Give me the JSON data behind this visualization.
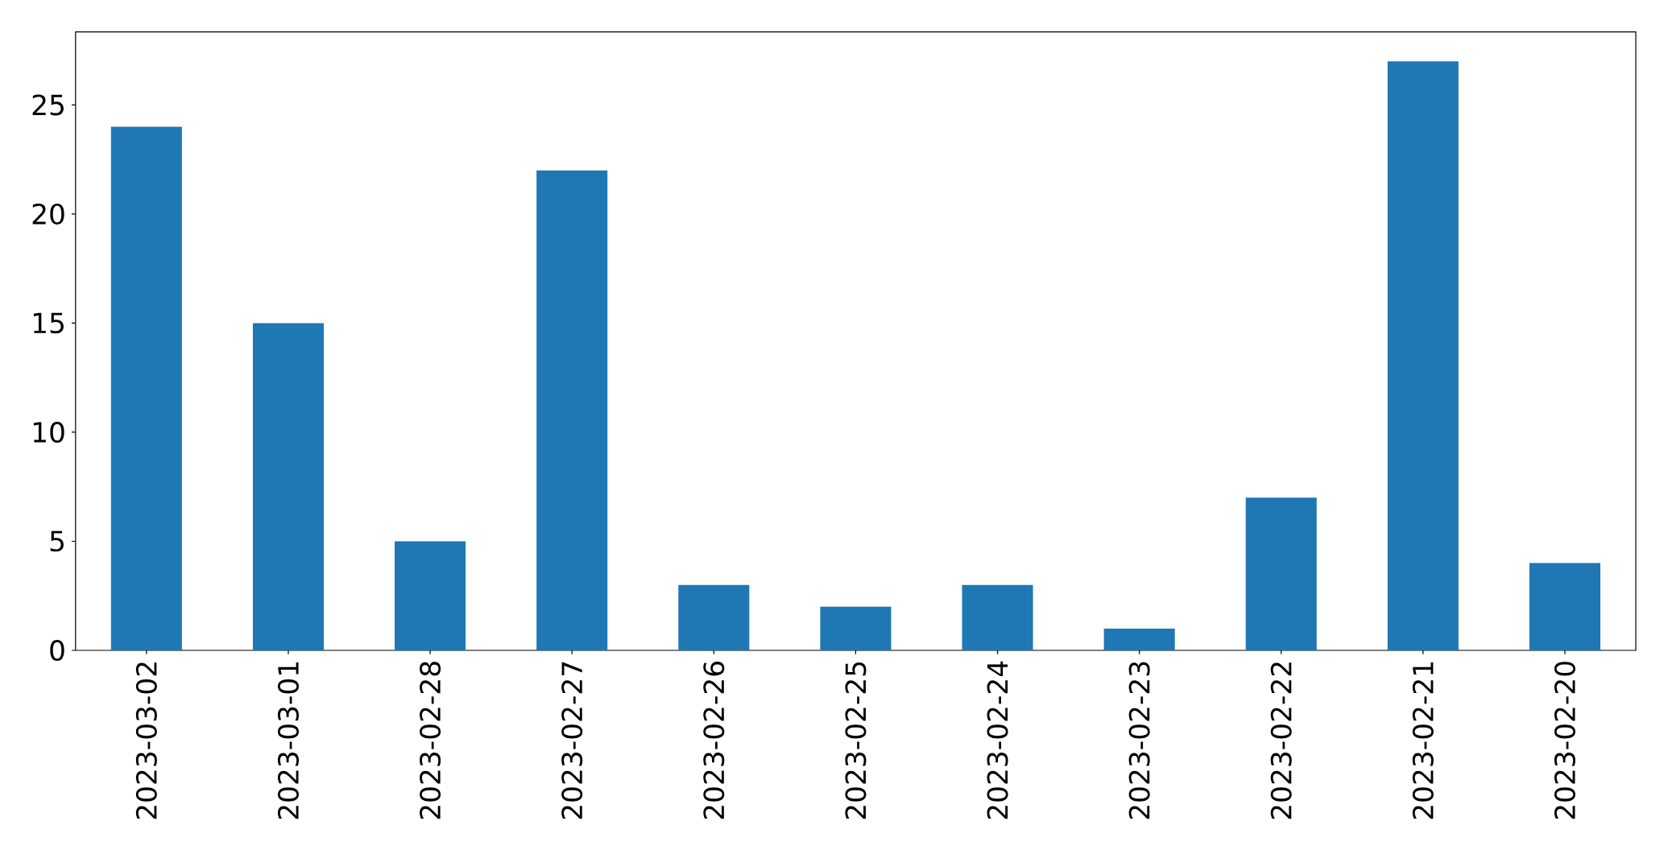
{
  "chart_data": {
    "type": "bar",
    "categories": [
      "2023-03-02",
      "2023-03-01",
      "2023-02-28",
      "2023-02-27",
      "2023-02-26",
      "2023-02-25",
      "2023-02-24",
      "2023-02-23",
      "2023-02-22",
      "2023-02-21",
      "2023-02-20"
    ],
    "values": [
      24,
      15,
      5,
      22,
      3,
      2,
      3,
      1,
      7,
      27,
      4
    ],
    "color": "#1f77b4",
    "ylim": [
      0,
      28.35
    ],
    "yticks": [
      0,
      5,
      10,
      15,
      20,
      25
    ]
  }
}
